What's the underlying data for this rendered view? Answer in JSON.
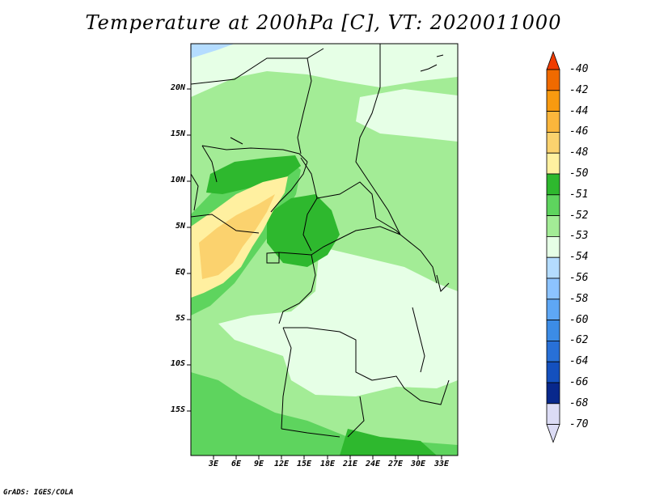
{
  "title": "Temperature at 200hPa [C], VT: 2020011000",
  "credit": "GrADS: IGES/COLA",
  "lat_ticks": [
    "20N",
    "15N",
    "10N",
    "5N",
    "EQ",
    "5S",
    "10S",
    "15S"
  ],
  "lon_ticks": [
    "3E",
    "6E",
    "9E",
    "12E",
    "15E",
    "18E",
    "21E",
    "24E",
    "27E",
    "30E",
    "33E"
  ],
  "colorbar": {
    "labels": [
      "-40",
      "-42",
      "-44",
      "-46",
      "-48",
      "-50",
      "-51",
      "-52",
      "-53",
      "-54",
      "-56",
      "-58",
      "-60",
      "-62",
      "-64",
      "-66",
      "-68",
      "-70"
    ],
    "colors": [
      "#f03c00",
      "#f06a00",
      "#f89a10",
      "#fbb63c",
      "#fbd26e",
      "#fff0a0",
      "#2eb82e",
      "#5ed45e",
      "#a3ec96",
      "#e6ffe6",
      "#b4dcff",
      "#8cc3ff",
      "#5ea7f5",
      "#3c8ce6",
      "#2870d7",
      "#1450be",
      "#08288c",
      "#dcdcf5"
    ],
    "arrow_top_color": "#f03c00",
    "arrow_bottom_color": "#dcdcf5"
  },
  "legend_colors": {
    "c51": "#fff0a0",
    "c50": "#fbd26e",
    "c52": "#2eb82e",
    "c53": "#5ed45e",
    "c54": "#a3ec96",
    "c55": "#e6ffe6",
    "c56": "#b4dcff"
  }
}
